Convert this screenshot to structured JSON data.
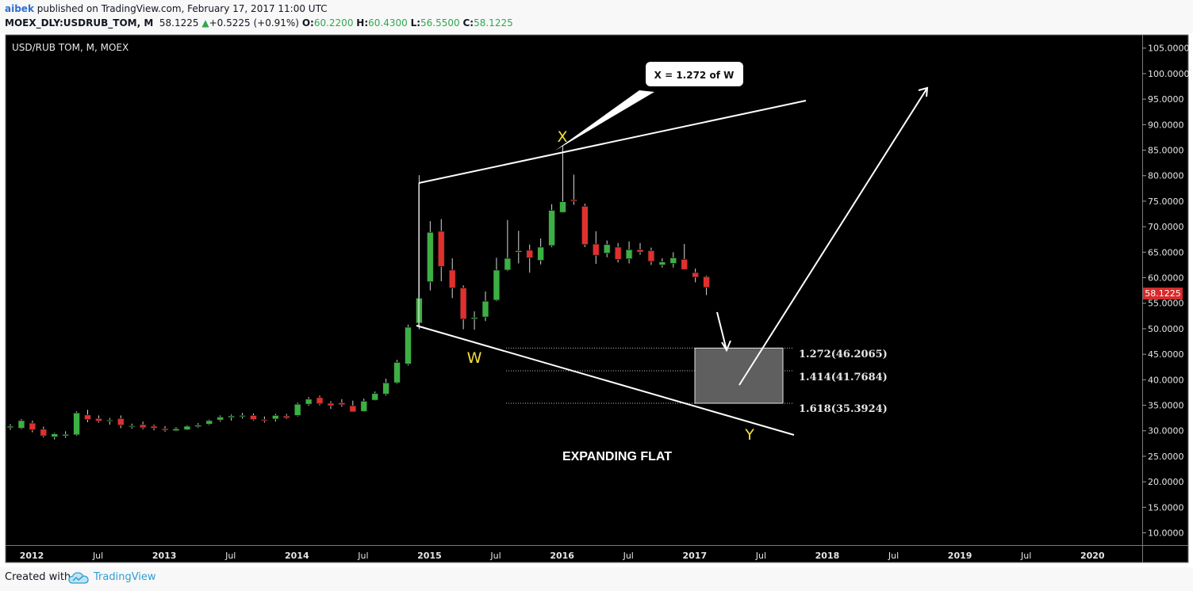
{
  "header": {
    "user": "aibek",
    "published": "published on TradingView.com, February 17, 2017 11:00 UTC",
    "symbol": "MOEX_DLY:USDRUB_TOM, M",
    "last": "58.1225",
    "change": "+0.5225 (+0.91%)",
    "o_label": "O:",
    "o_value": "60.2200",
    "h_label": "H:",
    "h_value": "60.4300",
    "l_label": "L:",
    "l_value": "56.5500",
    "c_label": "C:",
    "c_value": "58.1225",
    "up_icon": "triangle-up-icon"
  },
  "footer": {
    "created_with": "Created with",
    "brand": "TradingView",
    "logo_icon": "tradingview-cloud-icon"
  },
  "colors": {
    "background": "#000000",
    "up_candle": "#3cb043",
    "down_candle": "#e0302e",
    "label_yellow": "#f3e03a",
    "price_badge": "#d62b2b"
  },
  "chart_data": {
    "type": "candlestick",
    "title": "USD/RUB TOM, M, MOEX",
    "ylim": [
      7.6,
      107.6
    ],
    "y_ticks": [
      "105.0000",
      "100.0000",
      "95.0000",
      "90.0000",
      "85.0000",
      "80.0000",
      "75.0000",
      "70.0000",
      "65.0000",
      "60.0000",
      "55.0000",
      "50.0000",
      "45.0000",
      "40.0000",
      "35.0000",
      "30.0000",
      "25.0000",
      "20.0000",
      "15.0000",
      "10.0000"
    ],
    "x_ticks": [
      {
        "label": "2012",
        "i": 0,
        "bold": true
      },
      {
        "label": "Jul",
        "i": 6,
        "bold": false
      },
      {
        "label": "2013",
        "i": 12,
        "bold": true
      },
      {
        "label": "Jul",
        "i": 18,
        "bold": false
      },
      {
        "label": "2014",
        "i": 24,
        "bold": true
      },
      {
        "label": "Jul",
        "i": 30,
        "bold": false
      },
      {
        "label": "2015",
        "i": 36,
        "bold": true
      },
      {
        "label": "Jul",
        "i": 42,
        "bold": false
      },
      {
        "label": "2016",
        "i": 48,
        "bold": true
      },
      {
        "label": "Jul",
        "i": 54,
        "bold": false
      },
      {
        "label": "2017",
        "i": 60,
        "bold": true
      },
      {
        "label": "Jul",
        "i": 66,
        "bold": false
      },
      {
        "label": "2018",
        "i": 72,
        "bold": true
      },
      {
        "label": "Jul",
        "i": 78,
        "bold": false
      },
      {
        "label": "2019",
        "i": 84,
        "bold": true
      },
      {
        "label": "Jul",
        "i": 90,
        "bold": false
      },
      {
        "label": "2020",
        "i": 96,
        "bold": true
      }
    ],
    "candles": [
      {
        "o": 30.6,
        "h": 31.3,
        "l": 30.2,
        "c": 30.9
      },
      {
        "o": 30.5,
        "h": 32.3,
        "l": 30.3,
        "c": 32.0
      },
      {
        "o": 31.5,
        "h": 32.0,
        "l": 29.7,
        "c": 30.2
      },
      {
        "o": 30.3,
        "h": 30.8,
        "l": 28.7,
        "c": 29.0
      },
      {
        "o": 28.8,
        "h": 29.6,
        "l": 28.3,
        "c": 29.4
      },
      {
        "o": 29.0,
        "h": 29.9,
        "l": 28.6,
        "c": 29.3
      },
      {
        "o": 29.2,
        "h": 33.8,
        "l": 29.0,
        "c": 33.5
      },
      {
        "o": 33.1,
        "h": 34.1,
        "l": 31.7,
        "c": 32.2
      },
      {
        "o": 32.4,
        "h": 33.0,
        "l": 31.6,
        "c": 31.9
      },
      {
        "o": 32.0,
        "h": 32.5,
        "l": 31.2,
        "c": 32.1
      },
      {
        "o": 32.4,
        "h": 33.0,
        "l": 30.5,
        "c": 31.1
      },
      {
        "o": 31.0,
        "h": 31.4,
        "l": 30.4,
        "c": 31.0
      },
      {
        "o": 31.2,
        "h": 31.8,
        "l": 30.3,
        "c": 30.6
      },
      {
        "o": 30.9,
        "h": 31.2,
        "l": 30.1,
        "c": 30.5
      },
      {
        "o": 30.4,
        "h": 30.9,
        "l": 29.8,
        "c": 30.1
      },
      {
        "o": 30.0,
        "h": 30.7,
        "l": 29.9,
        "c": 30.4
      },
      {
        "o": 30.2,
        "h": 31.1,
        "l": 30.1,
        "c": 30.9
      },
      {
        "o": 30.8,
        "h": 31.5,
        "l": 30.6,
        "c": 31.1
      },
      {
        "o": 31.3,
        "h": 32.2,
        "l": 31.1,
        "c": 32.0
      },
      {
        "o": 32.1,
        "h": 33.0,
        "l": 31.8,
        "c": 32.7
      },
      {
        "o": 32.6,
        "h": 33.2,
        "l": 32.0,
        "c": 32.9
      },
      {
        "o": 32.9,
        "h": 33.5,
        "l": 32.4,
        "c": 33.0
      },
      {
        "o": 33.0,
        "h": 33.4,
        "l": 32.0,
        "c": 32.2
      },
      {
        "o": 32.2,
        "h": 32.8,
        "l": 31.6,
        "c": 32.0
      },
      {
        "o": 32.3,
        "h": 33.3,
        "l": 31.8,
        "c": 33.0
      },
      {
        "o": 32.9,
        "h": 33.3,
        "l": 32.3,
        "c": 32.5
      },
      {
        "o": 33.0,
        "h": 35.5,
        "l": 32.8,
        "c": 35.2
      },
      {
        "o": 35.2,
        "h": 36.6,
        "l": 34.9,
        "c": 36.2
      },
      {
        "o": 36.5,
        "h": 36.9,
        "l": 35.0,
        "c": 35.3
      },
      {
        "o": 35.4,
        "h": 35.8,
        "l": 34.3,
        "c": 34.9
      },
      {
        "o": 35.5,
        "h": 36.2,
        "l": 34.7,
        "c": 35.1
      },
      {
        "o": 34.9,
        "h": 35.9,
        "l": 33.8,
        "c": 33.7
      },
      {
        "o": 33.8,
        "h": 36.3,
        "l": 33.7,
        "c": 35.8
      },
      {
        "o": 36.0,
        "h": 37.7,
        "l": 35.9,
        "c": 37.3
      },
      {
        "o": 37.2,
        "h": 40.2,
        "l": 36.9,
        "c": 39.4
      },
      {
        "o": 39.4,
        "h": 43.9,
        "l": 39.2,
        "c": 43.4
      },
      {
        "o": 43.1,
        "h": 50.8,
        "l": 42.8,
        "c": 50.3
      },
      {
        "o": 51.1,
        "h": 80.1,
        "l": 49.9,
        "c": 56.0
      },
      {
        "o": 59.2,
        "h": 71.1,
        "l": 57.5,
        "c": 68.9
      },
      {
        "o": 69.1,
        "h": 71.5,
        "l": 59.3,
        "c": 62.2
      },
      {
        "o": 61.5,
        "h": 63.8,
        "l": 56.0,
        "c": 58.0
      },
      {
        "o": 58.0,
        "h": 58.5,
        "l": 49.9,
        "c": 51.9
      },
      {
        "o": 51.9,
        "h": 53.4,
        "l": 49.8,
        "c": 52.2
      },
      {
        "o": 52.3,
        "h": 57.3,
        "l": 51.5,
        "c": 55.4
      },
      {
        "o": 55.6,
        "h": 63.9,
        "l": 55.4,
        "c": 61.5
      },
      {
        "o": 61.5,
        "h": 71.3,
        "l": 61.3,
        "c": 63.8
      },
      {
        "o": 65.0,
        "h": 69.2,
        "l": 62.8,
        "c": 65.3
      },
      {
        "o": 65.4,
        "h": 66.5,
        "l": 61.0,
        "c": 63.9
      },
      {
        "o": 63.4,
        "h": 67.7,
        "l": 62.6,
        "c": 66.0
      },
      {
        "o": 66.3,
        "h": 74.4,
        "l": 66.0,
        "c": 73.2
      },
      {
        "o": 72.8,
        "h": 85.9,
        "l": 72.7,
        "c": 74.9
      },
      {
        "o": 75.3,
        "h": 80.2,
        "l": 74.3,
        "c": 75.0
      },
      {
        "o": 74.0,
        "h": 74.5,
        "l": 66.0,
        "c": 66.5
      },
      {
        "o": 66.6,
        "h": 69.1,
        "l": 62.7,
        "c": 64.4
      },
      {
        "o": 64.8,
        "h": 67.3,
        "l": 64.0,
        "c": 66.5
      },
      {
        "o": 66.0,
        "h": 66.8,
        "l": 63.0,
        "c": 63.6
      },
      {
        "o": 63.7,
        "h": 67.1,
        "l": 62.8,
        "c": 65.5
      },
      {
        "o": 65.5,
        "h": 66.8,
        "l": 64.5,
        "c": 65.0
      },
      {
        "o": 65.3,
        "h": 65.9,
        "l": 62.5,
        "c": 63.2
      },
      {
        "o": 62.5,
        "h": 63.8,
        "l": 62.0,
        "c": 63.1
      },
      {
        "o": 62.8,
        "h": 65.0,
        "l": 62.0,
        "c": 63.9
      },
      {
        "o": 63.6,
        "h": 66.6,
        "l": 61.8,
        "c": 61.6
      },
      {
        "o": 61.0,
        "h": 61.8,
        "l": 59.1,
        "c": 60.1
      },
      {
        "o": 60.2,
        "h": 60.4,
        "l": 56.6,
        "c": 58.1
      }
    ],
    "last_price": "58.1225",
    "annotations": {
      "label_x": "X",
      "label_w": "W",
      "label_y": "Y",
      "callout": "X = 1.272 of W",
      "pattern": "EXPANDING FLAT",
      "fib_levels": [
        {
          "label": "1.272(46.2065)",
          "value": 46.2065
        },
        {
          "label": "1.414(41.7684)",
          "value": 41.7684
        },
        {
          "label": "1.618(35.3924)",
          "value": 35.3924
        }
      ]
    }
  }
}
